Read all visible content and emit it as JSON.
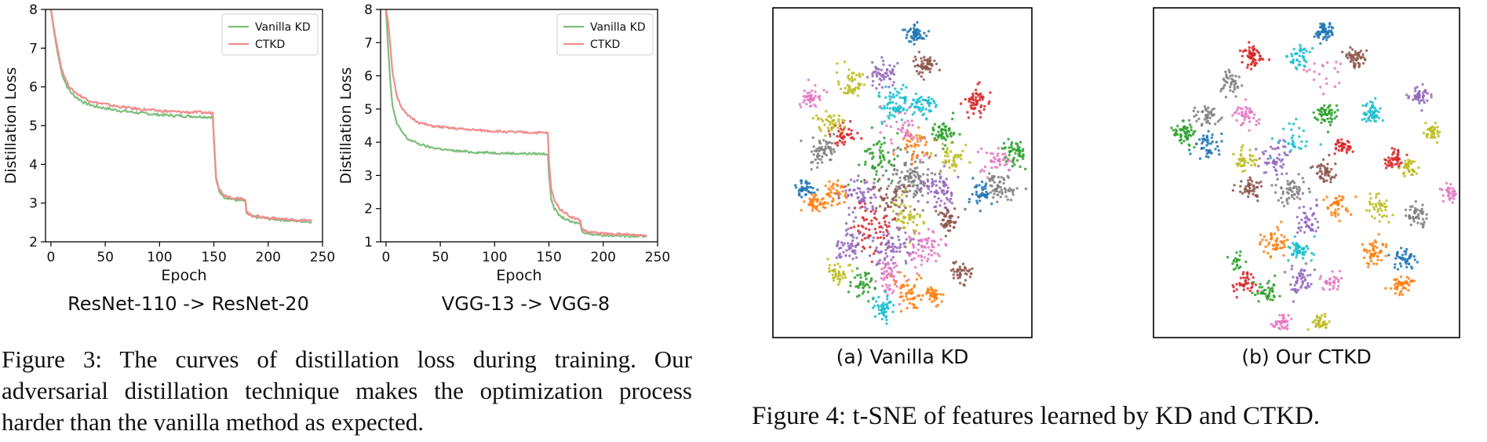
{
  "chart_data": [
    {
      "type": "line",
      "subtitle": "ResNet-110 -> ResNet-20",
      "xlabel": "Epoch",
      "ylabel": "Distillation Loss",
      "xlim": [
        -5,
        250
      ],
      "ylim": [
        2,
        8
      ],
      "xticks": [
        0,
        50,
        100,
        150,
        200,
        250
      ],
      "yticks": [
        2,
        3,
        4,
        5,
        6,
        7,
        8
      ],
      "legend_position": "top-right",
      "grid": false,
      "series": [
        {
          "name": "Vanilla KD",
          "color": "#7dbf7d",
          "x": [
            0,
            3,
            6,
            10,
            15,
            20,
            30,
            40,
            60,
            80,
            100,
            120,
            149,
            150,
            152,
            155,
            160,
            170,
            179,
            180,
            182,
            185,
            200,
            220,
            240
          ],
          "y": [
            8.0,
            7.4,
            6.9,
            6.35,
            6.0,
            5.8,
            5.6,
            5.5,
            5.4,
            5.33,
            5.28,
            5.25,
            5.22,
            4.6,
            3.6,
            3.3,
            3.15,
            3.08,
            3.05,
            2.75,
            2.7,
            2.65,
            2.6,
            2.55,
            2.52
          ]
        },
        {
          "name": "CTKD",
          "color": "#f28b8b",
          "x": [
            0,
            3,
            6,
            10,
            15,
            20,
            30,
            40,
            60,
            80,
            100,
            120,
            149,
            150,
            152,
            155,
            160,
            170,
            179,
            180,
            182,
            185,
            200,
            220,
            240
          ],
          "y": [
            8.0,
            7.45,
            7.0,
            6.45,
            6.1,
            5.9,
            5.72,
            5.6,
            5.5,
            5.43,
            5.38,
            5.35,
            5.33,
            4.7,
            3.7,
            3.35,
            3.2,
            3.12,
            3.1,
            2.78,
            2.72,
            2.68,
            2.62,
            2.57,
            2.54
          ]
        }
      ]
    },
    {
      "type": "line",
      "subtitle": "VGG-13 -> VGG-8",
      "xlabel": "Epoch",
      "ylabel": "Distillation Loss",
      "xlim": [
        -5,
        250
      ],
      "ylim": [
        1,
        8
      ],
      "xticks": [
        0,
        50,
        100,
        150,
        200,
        250
      ],
      "yticks": [
        1,
        2,
        3,
        4,
        5,
        6,
        7,
        8
      ],
      "legend_position": "top-right",
      "grid": false,
      "series": [
        {
          "name": "Vanilla KD",
          "color": "#7dbf7d",
          "x": [
            0,
            2,
            4,
            6,
            10,
            15,
            20,
            30,
            40,
            60,
            80,
            100,
            120,
            149,
            150,
            152,
            155,
            160,
            170,
            179,
            180,
            182,
            185,
            200,
            220,
            240
          ],
          "y": [
            8.0,
            6.8,
            5.8,
            5.1,
            4.55,
            4.3,
            4.1,
            3.95,
            3.85,
            3.75,
            3.7,
            3.68,
            3.66,
            3.65,
            3.0,
            2.3,
            2.0,
            1.78,
            1.6,
            1.55,
            1.35,
            1.3,
            1.25,
            1.2,
            1.18,
            1.17
          ]
        },
        {
          "name": "CTKD",
          "color": "#f28b8b",
          "x": [
            0,
            2,
            4,
            6,
            10,
            15,
            20,
            30,
            40,
            60,
            80,
            100,
            120,
            149,
            150,
            152,
            155,
            160,
            170,
            179,
            180,
            182,
            185,
            200,
            220,
            240
          ],
          "y": [
            8.0,
            7.6,
            6.9,
            6.1,
            5.4,
            5.0,
            4.8,
            4.6,
            4.5,
            4.42,
            4.37,
            4.33,
            4.3,
            4.28,
            3.4,
            2.6,
            2.25,
            2.0,
            1.75,
            1.65,
            1.42,
            1.36,
            1.3,
            1.25,
            1.22,
            1.2
          ]
        }
      ]
    }
  ],
  "captions": {
    "fig3": "Figure 3: The curves of distillation loss during training. Our adversarial distillation technique makes the optimization process harder than the vanilla method as expected.",
    "fig4": "Figure 4: t-SNE of features learned by KD and CTKD.",
    "fig4a": "(a) Vanilla KD",
    "fig4b": "(b) Our CTKD"
  },
  "tsne": {
    "palette": [
      "#1f77b4",
      "#ff7f0e",
      "#2ca02c",
      "#d62728",
      "#9467bd",
      "#8c564b",
      "#e377c2",
      "#7f7f7f",
      "#bcbd22",
      "#17becf"
    ]
  }
}
